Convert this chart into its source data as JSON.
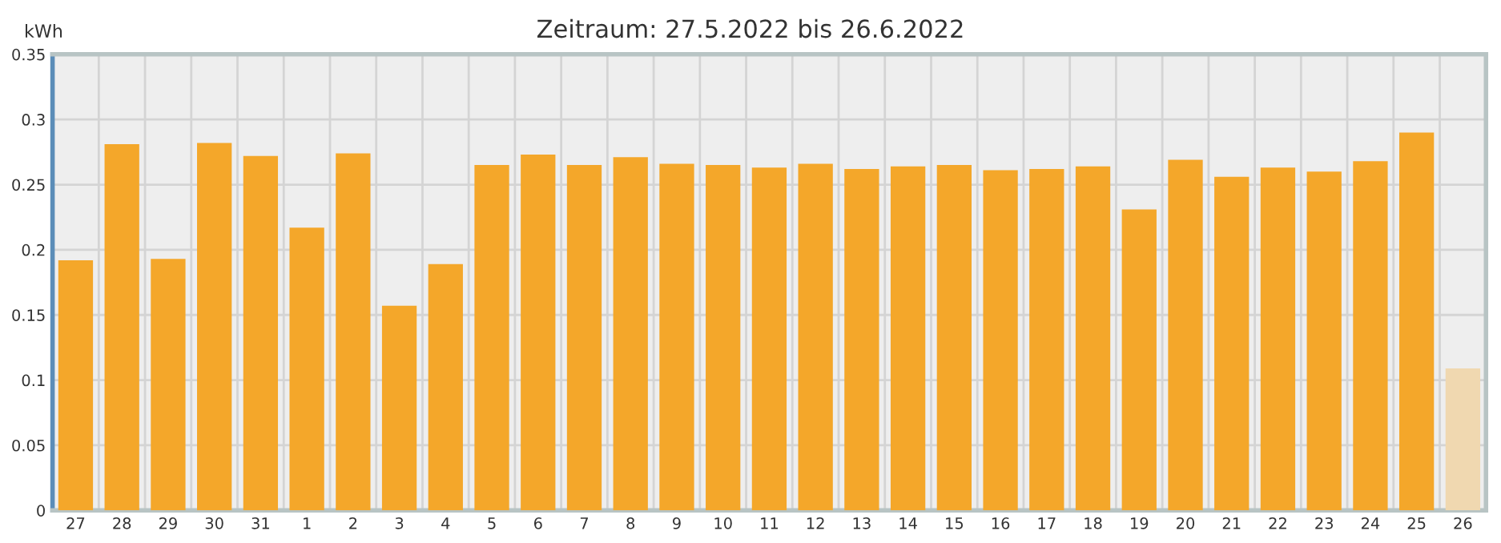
{
  "chart_data": {
    "type": "bar",
    "title": "Zeitraum: 27.5.2022 bis 26.6.2022",
    "ylabel": "kWh",
    "categories": [
      "27",
      "28",
      "29",
      "30",
      "31",
      "1",
      "2",
      "3",
      "4",
      "5",
      "6",
      "7",
      "8",
      "9",
      "10",
      "11",
      "12",
      "13",
      "14",
      "15",
      "16",
      "17",
      "18",
      "19",
      "20",
      "21",
      "22",
      "23",
      "24",
      "25",
      "26"
    ],
    "values": [
      0.192,
      0.281,
      0.193,
      0.282,
      0.272,
      0.217,
      0.274,
      0.157,
      0.189,
      0.265,
      0.273,
      0.265,
      0.271,
      0.266,
      0.265,
      0.263,
      0.266,
      0.262,
      0.264,
      0.265,
      0.261,
      0.262,
      0.264,
      0.231,
      0.269,
      0.256,
      0.263,
      0.26,
      0.268,
      0.29,
      0.109
    ],
    "colors": [
      "#f4a72a",
      "#f4a72a",
      "#f4a72a",
      "#f4a72a",
      "#f4a72a",
      "#f4a72a",
      "#f4a72a",
      "#f4a72a",
      "#f4a72a",
      "#f4a72a",
      "#f4a72a",
      "#f4a72a",
      "#f4a72a",
      "#f4a72a",
      "#f4a72a",
      "#f4a72a",
      "#f4a72a",
      "#f4a72a",
      "#f4a72a",
      "#f4a72a",
      "#f4a72a",
      "#f4a72a",
      "#f4a72a",
      "#f4a72a",
      "#f4a72a",
      "#f4a72a",
      "#f4a72a",
      "#f4a72a",
      "#f4a72a",
      "#f4a72a",
      "#f0d8b0"
    ],
    "ylim": [
      0,
      0.35
    ],
    "yticks": [
      0,
      0.05,
      0.1,
      0.15,
      0.2,
      0.25,
      0.3,
      0.35
    ],
    "grid": true
  }
}
